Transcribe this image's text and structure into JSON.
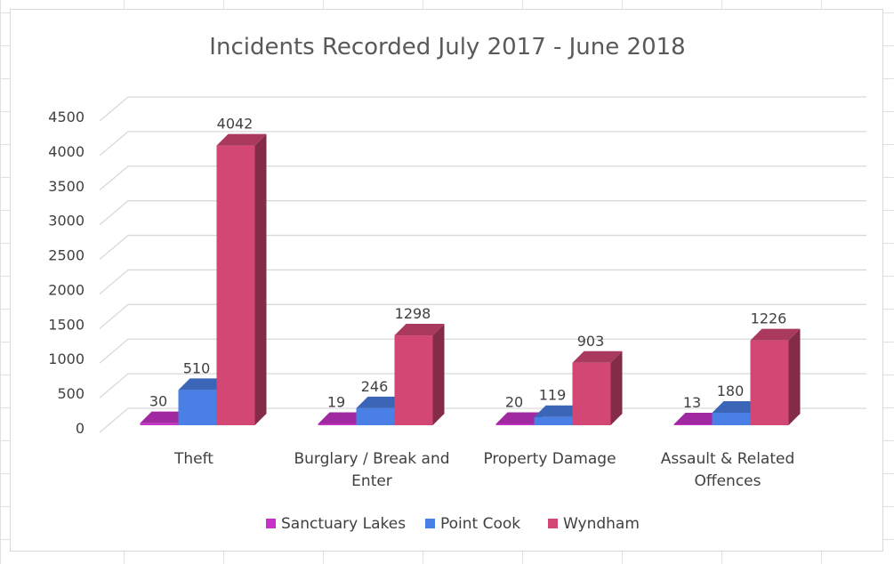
{
  "chart_data": {
    "type": "bar",
    "title": "Incidents Recorded July 2017 - June 2018",
    "categories": [
      [
        "Theft"
      ],
      [
        "Burglary / Break and",
        "Enter"
      ],
      [
        "Property Damage"
      ],
      [
        "Assault & Related",
        "Offences"
      ]
    ],
    "series": [
      {
        "name": "Sanctuary Lakes",
        "values": [
          30,
          19,
          20,
          13
        ],
        "color": "#c832c8"
      },
      {
        "name": "Point Cook",
        "values": [
          510,
          246,
          119,
          180
        ],
        "color": "#4a7fe6"
      },
      {
        "name": "Wyndham",
        "values": [
          4042,
          1298,
          903,
          1226
        ],
        "color": "#d34774"
      }
    ],
    "ylim": [
      0,
      4500
    ],
    "yticks": [
      "0",
      "500",
      "1000",
      "1500",
      "2000",
      "2500",
      "3000",
      "3500",
      "4000",
      "4500"
    ],
    "grid": true,
    "legend": "bottom",
    "style": "3d-clustered-column",
    "xlabel": "",
    "ylabel": ""
  }
}
